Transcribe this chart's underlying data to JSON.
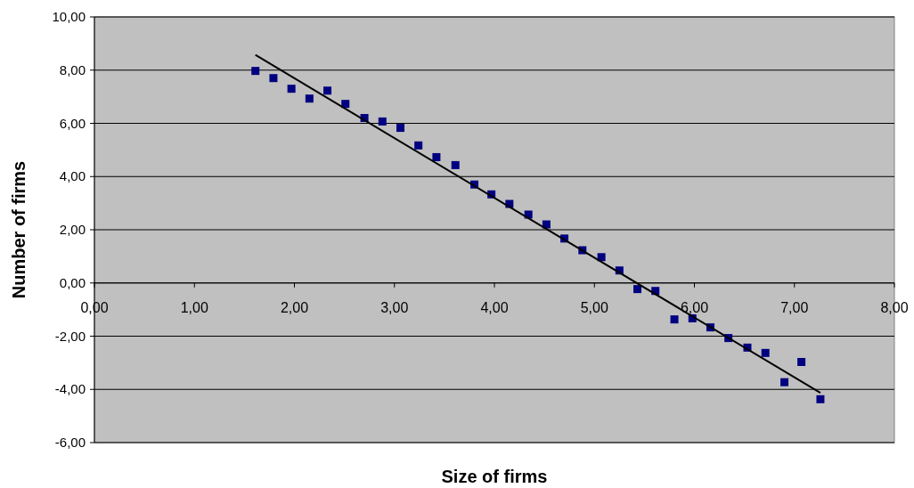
{
  "chart_data": {
    "type": "scatter",
    "xlabel": "Size of firms",
    "ylabel": "Number of firms",
    "xlim": [
      0,
      8
    ],
    "ylim": [
      -6,
      10
    ],
    "xticks": [
      {
        "value": 0,
        "label": "0,00"
      },
      {
        "value": 1,
        "label": "1,00"
      },
      {
        "value": 2,
        "label": "2,00"
      },
      {
        "value": 3,
        "label": "3,00"
      },
      {
        "value": 4,
        "label": "4,00"
      },
      {
        "value": 5,
        "label": "5,00"
      },
      {
        "value": 6,
        "label": "6,00"
      },
      {
        "value": 7,
        "label": "7,00"
      },
      {
        "value": 8,
        "label": "8,00"
      }
    ],
    "yticks": [
      {
        "value": -6,
        "label": "-6,00"
      },
      {
        "value": -4,
        "label": "-4,00"
      },
      {
        "value": -2,
        "label": "-2,00"
      },
      {
        "value": 0,
        "label": "0,00"
      },
      {
        "value": 2,
        "label": "2,00"
      },
      {
        "value": 4,
        "label": "4,00"
      },
      {
        "value": 6,
        "label": "6,00"
      },
      {
        "value": 8,
        "label": "8,00"
      },
      {
        "value": 10,
        "label": "10,00"
      }
    ],
    "grid": "y",
    "series": [
      {
        "color": "#000080",
        "marker": "square",
        "x": [
          1.61,
          1.79,
          1.97,
          2.15,
          2.33,
          2.51,
          2.7,
          2.88,
          3.06,
          3.24,
          3.42,
          3.61,
          3.8,
          3.97,
          4.15,
          4.34,
          4.52,
          4.7,
          4.88,
          5.07,
          5.25,
          5.43,
          5.61,
          5.8,
          5.98,
          6.16,
          6.34,
          6.53,
          6.71,
          6.9,
          7.07,
          7.26
        ],
        "values": [
          7.97,
          7.7,
          7.3,
          6.93,
          7.23,
          6.73,
          6.2,
          6.07,
          5.83,
          5.17,
          4.73,
          4.43,
          3.7,
          3.33,
          2.97,
          2.57,
          2.2,
          1.67,
          1.23,
          0.97,
          0.47,
          -0.23,
          -0.3,
          -1.37,
          -1.33,
          -1.67,
          -2.07,
          -2.43,
          -2.63,
          -3.73,
          -2.97,
          -4.37
        ]
      },
      {
        "type": "line",
        "color": "#000000",
        "line_style": "solid",
        "marker": "none",
        "x": [
          1.61,
          7.26
        ],
        "values": [
          8.57,
          -4.13
        ]
      }
    ]
  }
}
